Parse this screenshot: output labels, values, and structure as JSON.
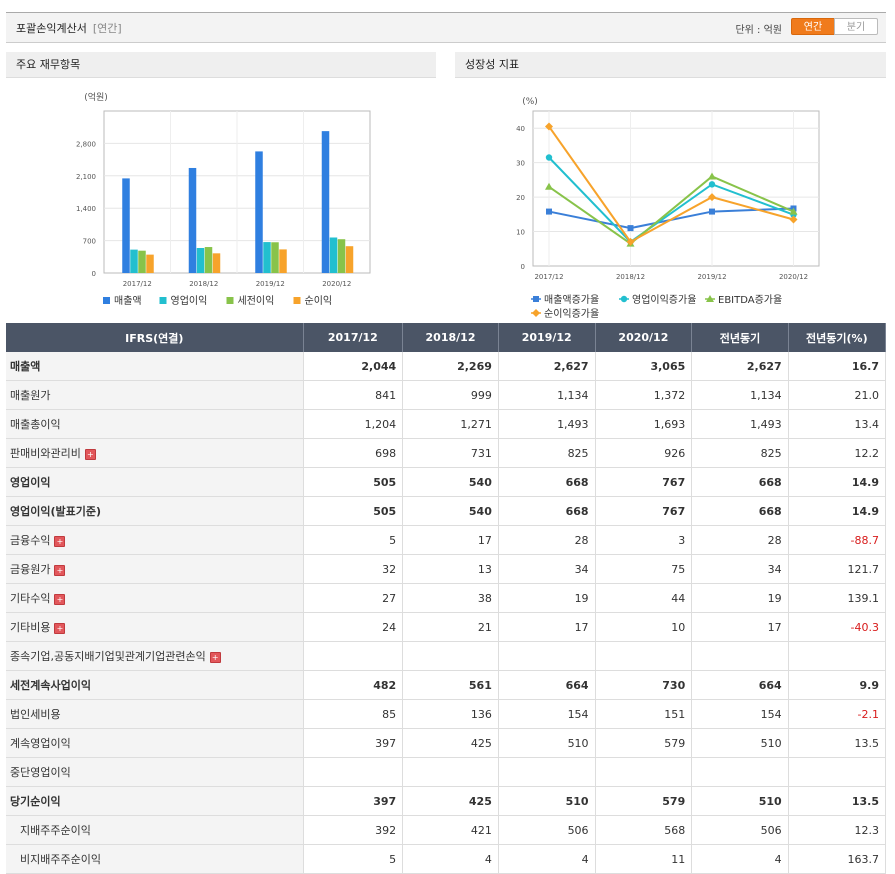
{
  "header": {
    "title": "포괄손익계산서",
    "subtitle": "[연간]",
    "unit_label": "단위 : 억원",
    "toggle_annual": "연간",
    "toggle_quarter": "분기"
  },
  "panels": {
    "left_title": "주요 재무항목",
    "right_title": "성장성 지표"
  },
  "chart_data": [
    {
      "type": "bar",
      "ylabel": "(억원)",
      "categories": [
        "2017/12",
        "2018/12",
        "2019/12",
        "2020/12"
      ],
      "ylim": [
        0,
        3500
      ],
      "yticks": [
        "0",
        "700",
        "1,400",
        "2,100",
        "2,800"
      ],
      "series": [
        {
          "name": "매출액",
          "values": [
            2044,
            2269,
            2627,
            3065
          ],
          "color": "#2f7fe0"
        },
        {
          "name": "영업이익",
          "values": [
            505,
            540,
            668,
            767
          ],
          "color": "#22bfcf"
        },
        {
          "name": "세전이익",
          "values": [
            482,
            561,
            664,
            730
          ],
          "color": "#88c34a"
        },
        {
          "name": "순이익",
          "values": [
            397,
            425,
            510,
            579
          ],
          "color": "#f7a32b"
        }
      ],
      "legend": "bottom",
      "grid": true
    },
    {
      "type": "line",
      "ylabel": "(%)",
      "categories": [
        "2017/12",
        "2018/12",
        "2019/12",
        "2020/12"
      ],
      "ylim": [
        0,
        45
      ],
      "yticks": [
        "0",
        "10",
        "20",
        "30",
        "40"
      ],
      "series": [
        {
          "name": "매출액증가율",
          "values": [
            15.8,
            11.0,
            15.8,
            16.7
          ],
          "color": "#3a7fd8"
        },
        {
          "name": "영업이익증가율",
          "values": [
            31.5,
            7.0,
            23.7,
            14.9
          ],
          "color": "#22bfcf"
        },
        {
          "name": "EBITDA증가율",
          "values": [
            23.0,
            6.5,
            26.0,
            15.8
          ],
          "color": "#88c34a"
        },
        {
          "name": "순이익증가율",
          "values": [
            40.5,
            7.0,
            20.0,
            13.5
          ],
          "color": "#f7a32b"
        }
      ],
      "legend": "bottom",
      "grid": true
    }
  ],
  "table": {
    "headers": [
      "IFRS(연결)",
      "2017/12",
      "2018/12",
      "2019/12",
      "2020/12",
      "전년동기",
      "전년동기(%)"
    ],
    "rows": [
      {
        "label": "매출액",
        "bold": true,
        "values": [
          "2,044",
          "2,269",
          "2,627",
          "3,065",
          "2,627",
          "16.7"
        ]
      },
      {
        "label": "매출원가",
        "values": [
          "841",
          "999",
          "1,134",
          "1,372",
          "1,134",
          "21.0"
        ]
      },
      {
        "label": "매출총이익",
        "values": [
          "1,204",
          "1,271",
          "1,493",
          "1,693",
          "1,493",
          "13.4"
        ]
      },
      {
        "label": "판매비와관리비",
        "expand": true,
        "values": [
          "698",
          "731",
          "825",
          "926",
          "825",
          "12.2"
        ]
      },
      {
        "label": "영업이익",
        "bold": true,
        "values": [
          "505",
          "540",
          "668",
          "767",
          "668",
          "14.9"
        ]
      },
      {
        "label": "영업이익(발표기준)",
        "bold": true,
        "values": [
          "505",
          "540",
          "668",
          "767",
          "668",
          "14.9"
        ]
      },
      {
        "label": "금융수익",
        "expand": true,
        "values": [
          "5",
          "17",
          "28",
          "3",
          "28",
          "-88.7"
        ]
      },
      {
        "label": "금융원가",
        "expand": true,
        "values": [
          "32",
          "13",
          "34",
          "75",
          "34",
          "121.7"
        ]
      },
      {
        "label": "기타수익",
        "expand": true,
        "values": [
          "27",
          "38",
          "19",
          "44",
          "19",
          "139.1"
        ]
      },
      {
        "label": "기타비용",
        "expand": true,
        "values": [
          "24",
          "21",
          "17",
          "10",
          "17",
          "-40.3"
        ]
      },
      {
        "label": "종속기업,공동지배기업및관계기업관련손익",
        "expand": true,
        "values": [
          "",
          "",
          "",
          "",
          "",
          ""
        ]
      },
      {
        "label": "세전계속사업이익",
        "bold": true,
        "values": [
          "482",
          "561",
          "664",
          "730",
          "664",
          "9.9"
        ]
      },
      {
        "label": "법인세비용",
        "values": [
          "85",
          "136",
          "154",
          "151",
          "154",
          "-2.1"
        ]
      },
      {
        "label": "계속영업이익",
        "values": [
          "397",
          "425",
          "510",
          "579",
          "510",
          "13.5"
        ]
      },
      {
        "label": "중단영업이익",
        "values": [
          "",
          "",
          "",
          "",
          "",
          ""
        ]
      },
      {
        "label": "당기순이익",
        "bold": true,
        "values": [
          "397",
          "425",
          "510",
          "579",
          "510",
          "13.5"
        ]
      },
      {
        "label": "지배주주순이익",
        "indent": true,
        "values": [
          "392",
          "421",
          "506",
          "568",
          "506",
          "12.3"
        ]
      },
      {
        "label": "비지배주주순이익",
        "indent": true,
        "values": [
          "5",
          "4",
          "4",
          "11",
          "4",
          "163.7"
        ]
      }
    ]
  }
}
